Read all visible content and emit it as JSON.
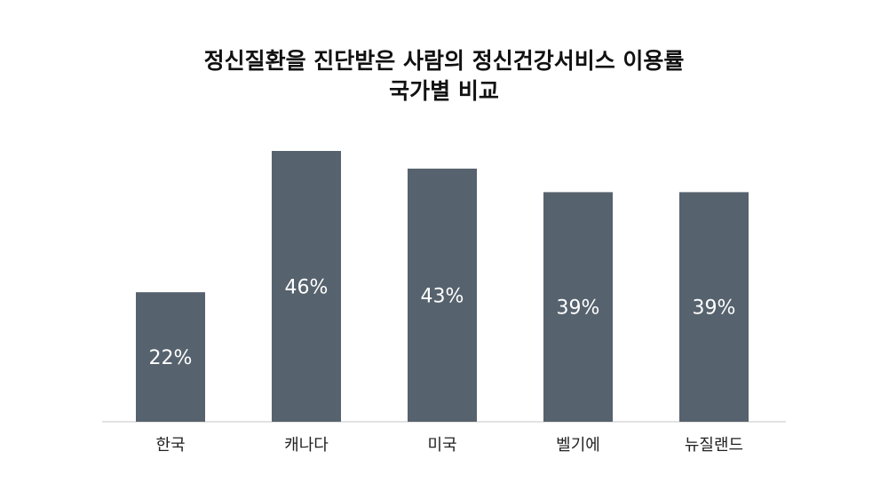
{
  "chart_data": {
    "type": "bar",
    "title_line1": "정신질환을 진단받은 사람의 정신건강서비스 이용률",
    "title_line2": "국가별 비교",
    "xlabel": "",
    "ylabel": "",
    "categories": [
      "한국",
      "캐나다",
      "미국",
      "벨기에",
      "뉴질랜드"
    ],
    "values": [
      22,
      46,
      43,
      39,
      39
    ],
    "data_labels": [
      "22%",
      "46%",
      "43%",
      "39%",
      "39%"
    ],
    "ylim": [
      0,
      46
    ],
    "grid": false,
    "legend": "none",
    "bar_color": "#56626d",
    "baseline_color": "#d9d9d9"
  }
}
